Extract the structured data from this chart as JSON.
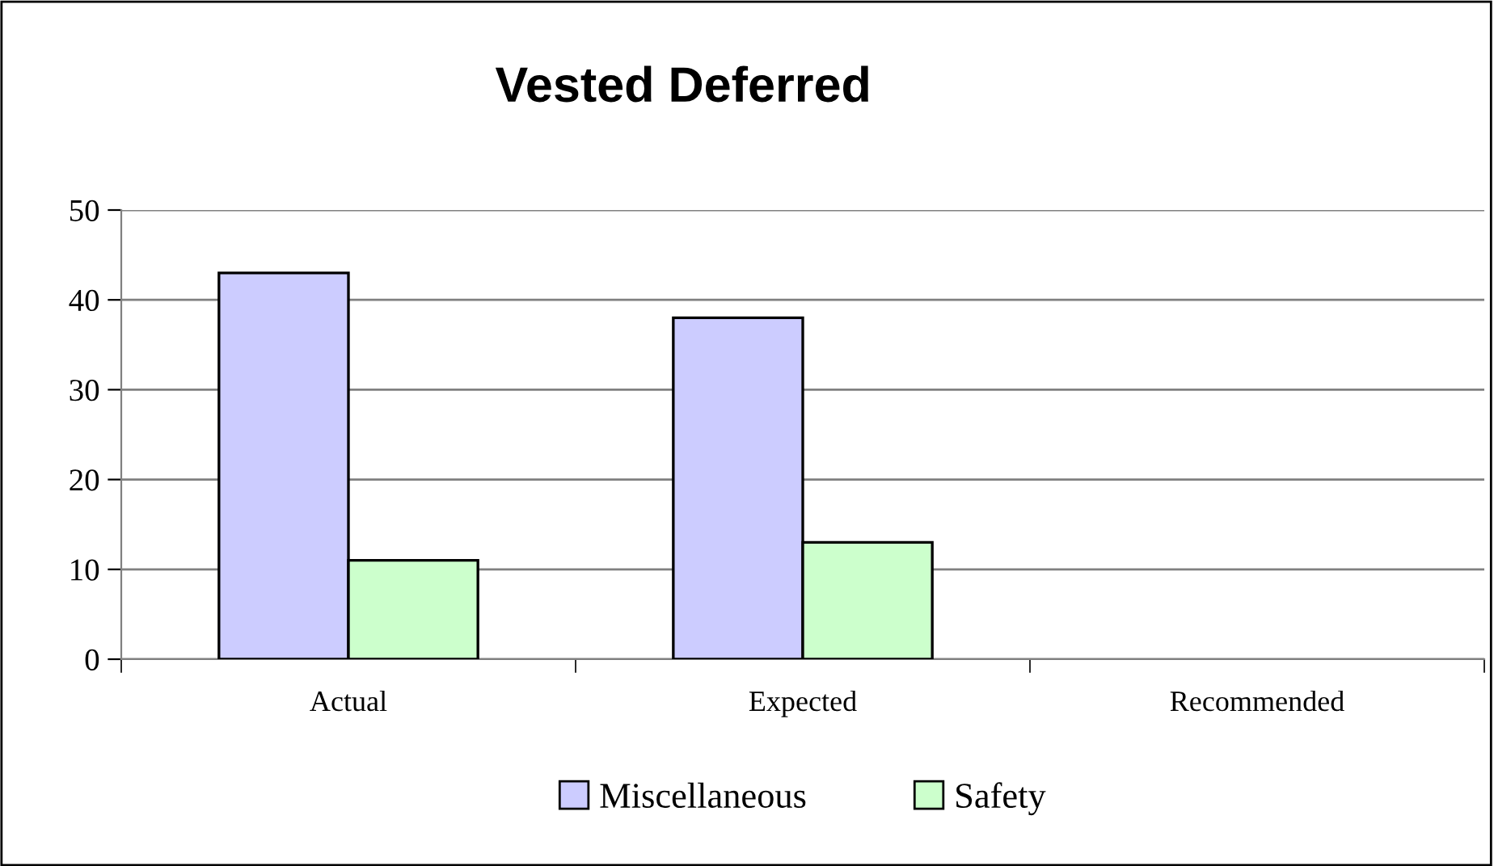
{
  "chart_data": {
    "type": "bar",
    "title": "Vested Deferred",
    "categories": [
      "Actual",
      "Expected",
      "Recommended"
    ],
    "series": [
      {
        "name": "Miscellaneous",
        "color": "#ccccff",
        "values": [
          43,
          38,
          null
        ]
      },
      {
        "name": "Safety",
        "color": "#ccffcc",
        "values": [
          11,
          13,
          null
        ]
      }
    ],
    "ylim": [
      0,
      50
    ],
    "yticks": [
      0,
      10,
      20,
      30,
      40,
      50
    ],
    "grid": "y",
    "legend": "bottom"
  }
}
